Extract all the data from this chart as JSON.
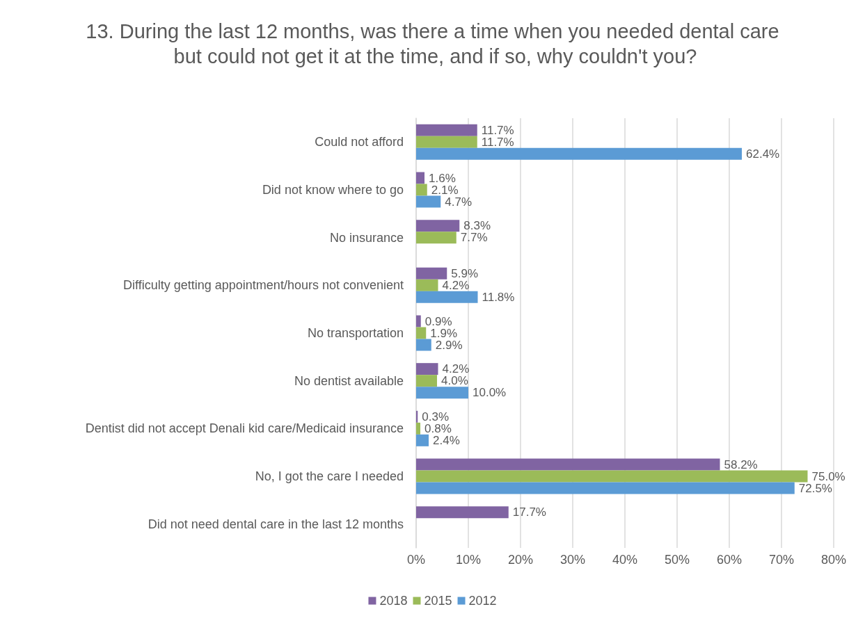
{
  "chart_data": {
    "type": "bar",
    "orientation": "horizontal",
    "title": "13. During the last 12 months, was there a time when you needed dental care but could not get it at the time, and if so, why couldn't you?",
    "categories": [
      "Could not afford",
      "Did not know where to go",
      "No insurance",
      "Difficulty getting appointment/hours not convenient",
      "No transportation",
      "No dentist available",
      "Dentist did not accept Denali kid care/Medicaid insurance",
      "No, I got the care I needed",
      "Did not need dental care in the last 12 months"
    ],
    "series": [
      {
        "name": "2018",
        "color": "#8064a2",
        "values": [
          11.7,
          1.6,
          8.3,
          5.9,
          0.9,
          4.2,
          0.3,
          58.2,
          17.7
        ],
        "value_labels": [
          "11.7%",
          "1.6%",
          "8.3%",
          "5.9%",
          "0.9%",
          "4.2%",
          "0.3%",
          "58.2%",
          "17.7%"
        ]
      },
      {
        "name": "2015",
        "color": "#9bbb59",
        "values": [
          11.7,
          2.1,
          7.7,
          4.2,
          1.9,
          4.0,
          0.8,
          75.0,
          null
        ],
        "value_labels": [
          "11.7%",
          "2.1%",
          "7.7%",
          "4.2%",
          "1.9%",
          "4.0%",
          "0.8%",
          "75.0%",
          null
        ]
      },
      {
        "name": "2012",
        "color": "#5b9bd5",
        "values": [
          62.4,
          4.7,
          null,
          11.8,
          2.9,
          10.0,
          2.4,
          72.5,
          null
        ],
        "value_labels": [
          "62.4%",
          "4.7%",
          null,
          "11.8%",
          "2.9%",
          "10.0%",
          "2.4%",
          "72.5%",
          null
        ]
      }
    ],
    "xlim": [
      0,
      80
    ],
    "xticks": [
      {
        "value": 0,
        "label": "0%"
      },
      {
        "value": 10,
        "label": "10%"
      },
      {
        "value": 20,
        "label": "20%"
      },
      {
        "value": 30,
        "label": "30%"
      },
      {
        "value": 40,
        "label": "40%"
      },
      {
        "value": 50,
        "label": "50%"
      },
      {
        "value": 60,
        "label": "60%"
      },
      {
        "value": 70,
        "label": "70%"
      },
      {
        "value": 80,
        "label": "80%"
      }
    ],
    "grid": "x",
    "legend": "bottom"
  }
}
